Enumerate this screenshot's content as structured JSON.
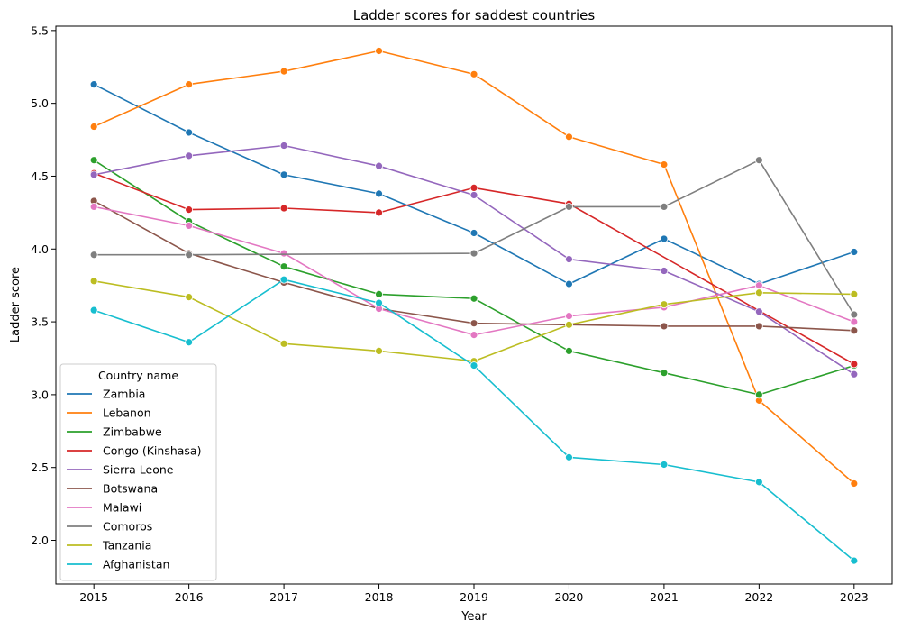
{
  "chart_data": {
    "type": "line",
    "title": "Ladder scores for saddest countries",
    "xlabel": "Year",
    "ylabel": "Ladder score",
    "x": [
      2015,
      2016,
      2017,
      2018,
      2019,
      2020,
      2021,
      2022,
      2023
    ],
    "x_tick_labels": [
      "2015",
      "2016",
      "2017",
      "2018",
      "2019",
      "2020",
      "2021",
      "2022",
      "2023"
    ],
    "y_ticks": [
      "2.0",
      "2.5",
      "3.0",
      "3.5",
      "4.0",
      "4.5",
      "5.0",
      "5.5"
    ],
    "ylim": [
      1.7,
      5.53
    ],
    "grid": false,
    "legend": {
      "title": "Country name",
      "placement": "lower-left"
    },
    "series": [
      {
        "name": "Zambia",
        "color": "#1f77b4",
        "values": [
          5.13,
          4.8,
          4.51,
          4.38,
          4.11,
          3.76,
          4.07,
          3.76,
          3.98
        ]
      },
      {
        "name": "Lebanon",
        "color": "#ff7f0e",
        "values": [
          4.84,
          5.13,
          5.22,
          5.36,
          5.2,
          4.77,
          4.58,
          2.96,
          2.39
        ]
      },
      {
        "name": "Zimbabwe",
        "color": "#2ca02c",
        "values": [
          4.61,
          4.19,
          3.88,
          3.69,
          3.66,
          3.3,
          3.15,
          3.0,
          3.2
        ]
      },
      {
        "name": "Congo (Kinshasa)",
        "color": "#d62728",
        "values": [
          4.52,
          4.27,
          4.28,
          4.25,
          4.42,
          4.31,
          null,
          null,
          3.21
        ]
      },
      {
        "name": "Sierra Leone",
        "color": "#9467bd",
        "values": [
          4.51,
          4.64,
          4.71,
          4.57,
          4.37,
          3.93,
          3.85,
          3.57,
          3.14
        ]
      },
      {
        "name": "Botswana",
        "color": "#8c564b",
        "values": [
          4.33,
          3.97,
          3.77,
          3.59,
          3.49,
          3.48,
          3.47,
          3.47,
          3.44
        ]
      },
      {
        "name": "Malawi",
        "color": "#e377c2",
        "values": [
          4.29,
          4.16,
          3.97,
          3.59,
          3.41,
          3.54,
          3.6,
          3.75,
          3.5
        ]
      },
      {
        "name": "Comoros",
        "color": "#7f7f7f",
        "values": [
          3.96,
          3.96,
          null,
          null,
          3.97,
          4.29,
          4.29,
          4.61,
          3.55
        ]
      },
      {
        "name": "Tanzania",
        "color": "#bcbd22",
        "values": [
          3.78,
          3.67,
          3.35,
          3.3,
          3.23,
          3.48,
          3.62,
          3.7,
          3.69
        ]
      },
      {
        "name": "Afghanistan",
        "color": "#17becf",
        "values": [
          3.58,
          3.36,
          3.79,
          3.63,
          3.2,
          2.57,
          2.52,
          2.4,
          1.86
        ]
      }
    ]
  }
}
